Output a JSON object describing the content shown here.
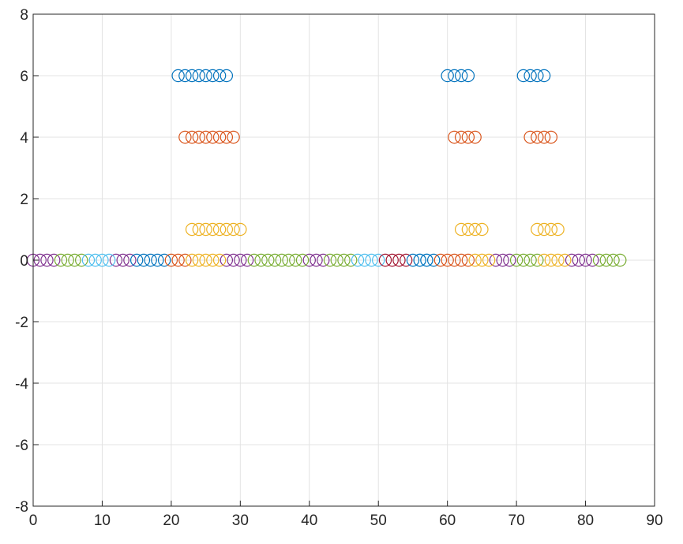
{
  "chart_data": {
    "type": "scatter",
    "title": "",
    "xlabel": "",
    "ylabel": "",
    "xlim": [
      0,
      90
    ],
    "ylim": [
      -8,
      8
    ],
    "xticks": [
      "0",
      "10",
      "20",
      "30",
      "40",
      "50",
      "60",
      "70",
      "80",
      "90"
    ],
    "yticks": [
      "-8",
      "-6",
      "-4",
      "-2",
      "0",
      "2",
      "4",
      "6",
      "8"
    ],
    "grid": true,
    "marker": "circle-open",
    "series": [
      {
        "color": "#0072BD",
        "points": [
          [
            21,
            6
          ],
          [
            22,
            6
          ],
          [
            23,
            6
          ],
          [
            24,
            6
          ],
          [
            25,
            6
          ],
          [
            26,
            6
          ],
          [
            27,
            6
          ],
          [
            28,
            6
          ],
          [
            60,
            6
          ],
          [
            61,
            6
          ],
          [
            62,
            6
          ],
          [
            63,
            6
          ],
          [
            71,
            6
          ],
          [
            72,
            6
          ],
          [
            73,
            6
          ],
          [
            74,
            6
          ]
        ]
      },
      {
        "color": "#D95319",
        "points": [
          [
            22,
            4
          ],
          [
            23,
            4
          ],
          [
            24,
            4
          ],
          [
            25,
            4
          ],
          [
            26,
            4
          ],
          [
            27,
            4
          ],
          [
            28,
            4
          ],
          [
            29,
            4
          ],
          [
            61,
            4
          ],
          [
            62,
            4
          ],
          [
            63,
            4
          ],
          [
            64,
            4
          ],
          [
            72,
            4
          ],
          [
            73,
            4
          ],
          [
            74,
            4
          ],
          [
            75,
            4
          ]
        ]
      },
      {
        "color": "#EDB120",
        "points": [
          [
            23,
            1
          ],
          [
            24,
            1
          ],
          [
            25,
            1
          ],
          [
            26,
            1
          ],
          [
            27,
            1
          ],
          [
            28,
            1
          ],
          [
            29,
            1
          ],
          [
            30,
            1
          ],
          [
            62,
            1
          ],
          [
            63,
            1
          ],
          [
            64,
            1
          ],
          [
            65,
            1
          ],
          [
            73,
            1
          ],
          [
            74,
            1
          ],
          [
            75,
            1
          ],
          [
            76,
            1
          ]
        ]
      },
      {
        "color": "#7E2F8E",
        "points": [
          [
            0,
            0
          ],
          [
            1,
            0
          ],
          [
            2,
            0
          ],
          [
            3,
            0
          ],
          [
            12,
            0
          ],
          [
            13,
            0
          ],
          [
            14,
            0
          ],
          [
            28,
            0
          ],
          [
            29,
            0
          ],
          [
            30,
            0
          ],
          [
            31,
            0
          ],
          [
            40,
            0
          ],
          [
            41,
            0
          ],
          [
            42,
            0
          ],
          [
            67,
            0
          ],
          [
            68,
            0
          ],
          [
            69,
            0
          ],
          [
            78,
            0
          ],
          [
            79,
            0
          ],
          [
            80,
            0
          ],
          [
            81,
            0
          ]
        ]
      },
      {
        "color": "#77AC30",
        "points": [
          [
            4,
            0
          ],
          [
            5,
            0
          ],
          [
            6,
            0
          ],
          [
            7,
            0
          ],
          [
            32,
            0
          ],
          [
            33,
            0
          ],
          [
            34,
            0
          ],
          [
            35,
            0
          ],
          [
            36,
            0
          ],
          [
            37,
            0
          ],
          [
            38,
            0
          ],
          [
            39,
            0
          ],
          [
            43,
            0
          ],
          [
            44,
            0
          ],
          [
            45,
            0
          ],
          [
            46,
            0
          ],
          [
            70,
            0
          ],
          [
            71,
            0
          ],
          [
            72,
            0
          ],
          [
            73,
            0
          ],
          [
            82,
            0
          ],
          [
            83,
            0
          ],
          [
            84,
            0
          ],
          [
            85,
            0
          ]
        ]
      },
      {
        "color": "#4DBEEE",
        "points": [
          [
            8,
            0
          ],
          [
            9,
            0
          ],
          [
            10,
            0
          ],
          [
            11,
            0
          ],
          [
            47,
            0
          ],
          [
            48,
            0
          ],
          [
            49,
            0
          ],
          [
            50,
            0
          ],
          [
            56,
            0
          ],
          [
            57,
            0
          ]
        ]
      },
      {
        "color": "#A2142F",
        "points": [
          [
            51,
            0
          ],
          [
            52,
            0
          ],
          [
            53,
            0
          ],
          [
            54,
            0
          ]
        ]
      },
      {
        "color": "#0072BD",
        "points": [
          [
            15,
            0
          ],
          [
            16,
            0
          ],
          [
            17,
            0
          ],
          [
            18,
            0
          ],
          [
            19,
            0
          ],
          [
            55,
            0
          ],
          [
            56,
            0
          ],
          [
            57,
            0
          ],
          [
            58,
            0
          ]
        ]
      },
      {
        "color": "#D95319",
        "points": [
          [
            20,
            0
          ],
          [
            21,
            0
          ],
          [
            22,
            0
          ],
          [
            59,
            0
          ],
          [
            60,
            0
          ],
          [
            61,
            0
          ],
          [
            62,
            0
          ],
          [
            63,
            0
          ]
        ]
      },
      {
        "color": "#EDB120",
        "points": [
          [
            23,
            0
          ],
          [
            24,
            0
          ],
          [
            25,
            0
          ],
          [
            26,
            0
          ],
          [
            27,
            0
          ],
          [
            64,
            0
          ],
          [
            65,
            0
          ],
          [
            66,
            0
          ],
          [
            74,
            0
          ],
          [
            75,
            0
          ],
          [
            76,
            0
          ],
          [
            77,
            0
          ]
        ]
      }
    ]
  }
}
